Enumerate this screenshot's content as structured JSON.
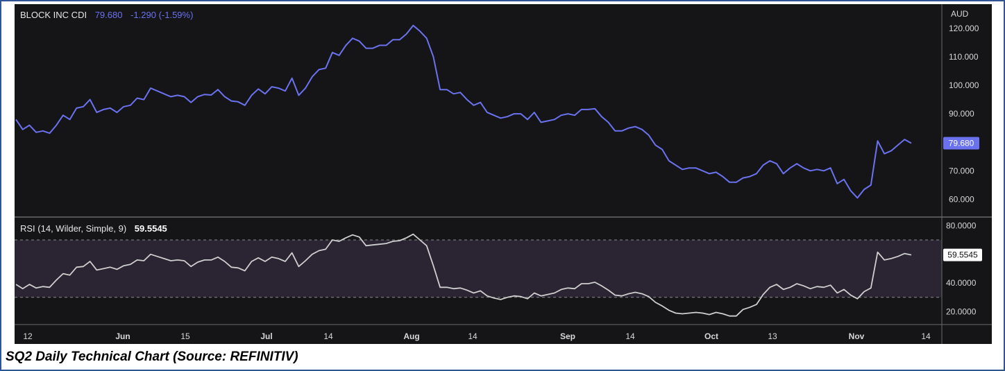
{
  "caption": "SQ2 Daily Technical Chart (Source: REFINITIV)",
  "colors": {
    "background": "#151517",
    "price_line": "#6b72f0",
    "rsi_line": "#cfcfcf",
    "rsi_band": "#2a2433",
    "text": "#d8d8d8",
    "frame": "#2f5597"
  },
  "chart_data": [
    {
      "type": "line",
      "title": "BLOCK INC CDI",
      "last_value": "79.680",
      "change": "-1.290 (-1.59%)",
      "currency": "AUD",
      "ylim": [
        55,
        127
      ],
      "y_ticks": [
        "120.000",
        "110.000",
        "100.000",
        "90.000",
        "80.000",
        "70.000",
        "60.000"
      ],
      "x_ticks": [
        "12",
        "Jun",
        "15",
        "Jul",
        "14",
        "Aug",
        "14",
        "Sep",
        "14",
        "Oct",
        "13",
        "Nov",
        "14"
      ],
      "series": [
        {
          "values": [
            88.0,
            84.5,
            86.0,
            83.5,
            84.0,
            83.2,
            86.0,
            89.5,
            88.0,
            92.0,
            92.5,
            95.0,
            90.5,
            91.5,
            92.0,
            90.5,
            92.5,
            93.0,
            95.5,
            95.0,
            99.0,
            98.0,
            97.0,
            96.0,
            96.5,
            96.0,
            94.0,
            96.0,
            96.8,
            96.6,
            98.5,
            96.0,
            94.5,
            94.2,
            93.0,
            96.5,
            98.7,
            97.0,
            99.5,
            99.0,
            98.0,
            102.5,
            96.5,
            99.0,
            103.0,
            105.5,
            106.0,
            111.5,
            110.5,
            114.0,
            116.5,
            115.5,
            113.0,
            113.0,
            114.0,
            114.0,
            116.0,
            116.0,
            118.0,
            121.0,
            119.0,
            116.5,
            110.0,
            98.5,
            98.5,
            97.0,
            97.5,
            95.0,
            93.0,
            94.0,
            90.5,
            89.5,
            88.5,
            89.0,
            90.0,
            90.0,
            88.0,
            90.5,
            87.0,
            87.5,
            88.0,
            89.5,
            90.0,
            89.5,
            91.5,
            91.5,
            91.8,
            89.0,
            87.0,
            84.0,
            84.0,
            85.0,
            85.5,
            84.5,
            82.5,
            79.0,
            77.5,
            73.5,
            72.0,
            70.5,
            71.0,
            71.0,
            70.0,
            69.0,
            69.5,
            68.0,
            66.0,
            66.0,
            67.5,
            68.0,
            69.0,
            72.0,
            73.5,
            72.5,
            69.0,
            71.0,
            72.5,
            71.0,
            70.0,
            70.5,
            70.0,
            71.0,
            65.5,
            67.0,
            63.0,
            60.5,
            63.5,
            65.0,
            80.5,
            76.0,
            77.0,
            79.0,
            81.0,
            79.68
          ]
        }
      ]
    },
    {
      "type": "line",
      "title": "RSI (14, Wilder, Simple, 9)",
      "last_value": "59.5545",
      "ylim": [
        12,
        84
      ],
      "band": [
        30,
        70
      ],
      "y_ticks": [
        "80.0000",
        "60.0000",
        "40.0000",
        "20.0000"
      ],
      "series": [
        {
          "values": [
            39.0,
            36.0,
            39.0,
            36.5,
            37.5,
            37.0,
            42.0,
            46.5,
            45.5,
            51.0,
            51.5,
            55.0,
            49.0,
            50.0,
            51.0,
            49.5,
            52.0,
            53.0,
            56.0,
            55.5,
            60.0,
            58.5,
            57.0,
            55.5,
            56.0,
            55.5,
            51.5,
            54.5,
            56.0,
            56.0,
            58.0,
            55.0,
            51.0,
            50.5,
            48.5,
            55.0,
            57.5,
            55.0,
            58.0,
            57.0,
            55.0,
            61.0,
            51.5,
            55.5,
            60.0,
            62.5,
            63.5,
            70.0,
            69.0,
            71.5,
            73.5,
            72.0,
            66.0,
            66.5,
            67.0,
            67.5,
            69.0,
            69.5,
            71.5,
            74.0,
            70.0,
            66.0,
            52.0,
            37.0,
            37.0,
            36.0,
            36.5,
            35.0,
            33.0,
            34.5,
            31.0,
            29.5,
            28.5,
            30.0,
            31.0,
            30.5,
            29.0,
            33.0,
            31.0,
            32.0,
            33.0,
            35.5,
            36.5,
            36.0,
            39.5,
            39.5,
            40.5,
            38.0,
            35.0,
            31.5,
            31.0,
            32.5,
            33.5,
            32.5,
            30.5,
            26.5,
            24.0,
            21.0,
            19.0,
            18.5,
            19.0,
            19.5,
            19.0,
            18.0,
            19.5,
            18.5,
            17.0,
            17.0,
            21.5,
            23.0,
            25.0,
            32.0,
            37.0,
            39.0,
            35.5,
            37.0,
            39.5,
            38.0,
            36.0,
            37.5,
            37.0,
            38.5,
            33.0,
            35.5,
            31.5,
            29.0,
            34.0,
            36.5,
            61.5,
            56.0,
            57.0,
            58.5,
            60.5,
            59.5545
          ]
        }
      ]
    }
  ]
}
